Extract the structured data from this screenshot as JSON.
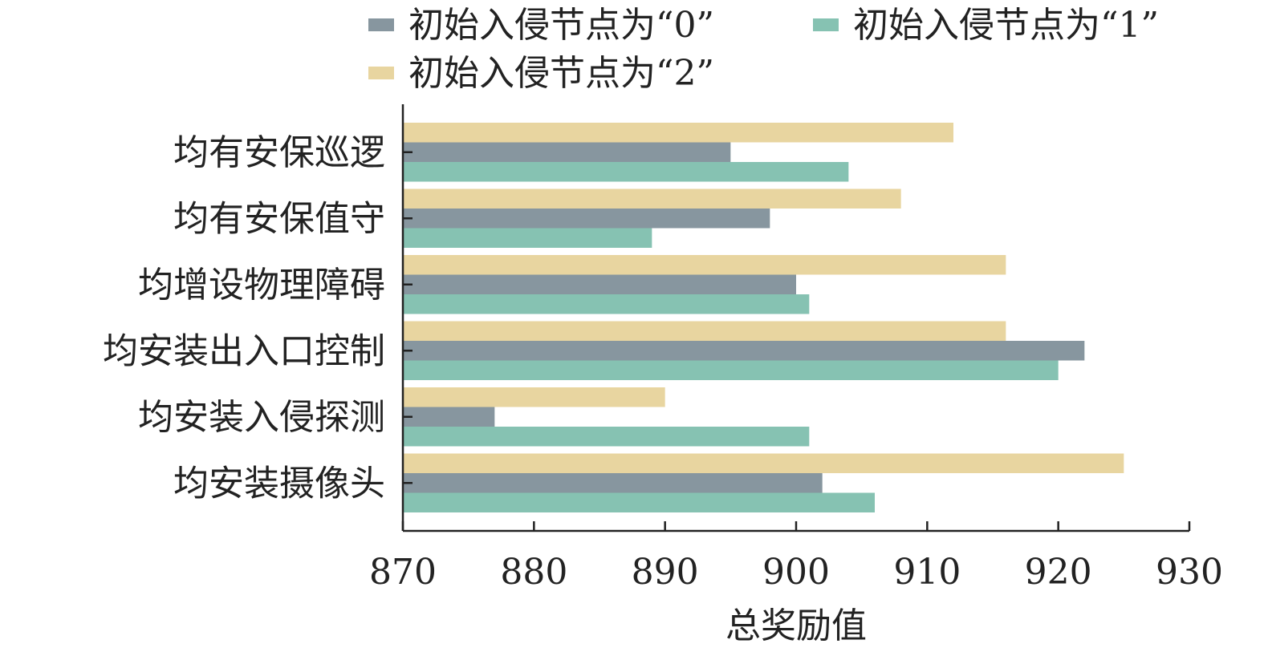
{
  "chart_data": {
    "type": "bar",
    "orientation": "horizontal",
    "categories": [
      "均有安保巡逻",
      "均有安保值守",
      "均增设物理障碍",
      "均安装出入口控制",
      "均安装入侵探测",
      "均安装摄像头"
    ],
    "series": [
      {
        "name": "初始入侵节点为“2”",
        "color": "#e8d5a0",
        "values": [
          912,
          908,
          916,
          916,
          890,
          925
        ]
      },
      {
        "name": "初始入侵节点为“0”",
        "color": "#87969f",
        "values": [
          895,
          898,
          900,
          922,
          877,
          902
        ]
      },
      {
        "name": "初始入侵节点为“1”",
        "color": "#86c2b2",
        "values": [
          904,
          889,
          901,
          920,
          901,
          906
        ]
      }
    ],
    "legend_order": [
      1,
      2,
      0
    ],
    "xlabel": "总奖励值",
    "ylabel": "",
    "xlim": [
      870,
      930
    ],
    "xticks": [
      "870",
      "880",
      "890",
      "900",
      "910",
      "920",
      "930"
    ],
    "grid": false,
    "legend_position": "top"
  }
}
